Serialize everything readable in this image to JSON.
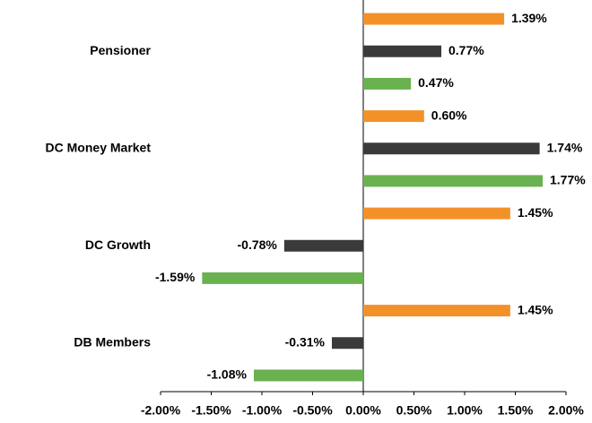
{
  "chart_data": {
    "type": "bar",
    "orientation": "horizontal",
    "categories": [
      "Pensioner",
      "DC Money Market",
      "DC Growth",
      "DB Members"
    ],
    "series": [
      {
        "color": "#f39129",
        "values": [
          1.39,
          0.6,
          1.45,
          1.45
        ],
        "value_labels": [
          "1.39%",
          "0.60%",
          "1.45%",
          "1.45%"
        ]
      },
      {
        "color": "#3a3a3a",
        "values": [
          0.77,
          1.74,
          -0.78,
          -0.31
        ],
        "value_labels": [
          "0.77%",
          "1.74%",
          "-0.78%",
          "-0.31%"
        ]
      },
      {
        "color": "#6ab150",
        "values": [
          0.47,
          1.77,
          -1.59,
          -1.08
        ],
        "value_labels": [
          "0.47%",
          "1.77%",
          "-1.59%",
          "-1.08%"
        ]
      }
    ],
    "xlim": [
      -2,
      2
    ],
    "xticks": [
      {
        "value": -2,
        "label": "-2.00%"
      },
      {
        "value": -1.5,
        "label": "-1.50%"
      },
      {
        "value": -1,
        "label": "-1.00%"
      },
      {
        "value": -0.5,
        "label": "-0.50%"
      },
      {
        "value": 0,
        "label": "0.00%"
      },
      {
        "value": 0.5,
        "label": "0.50%"
      },
      {
        "value": 1,
        "label": "1.00%"
      },
      {
        "value": 1.5,
        "label": "1.50%"
      },
      {
        "value": 2,
        "label": "2.00%"
      }
    ],
    "grid": false
  }
}
